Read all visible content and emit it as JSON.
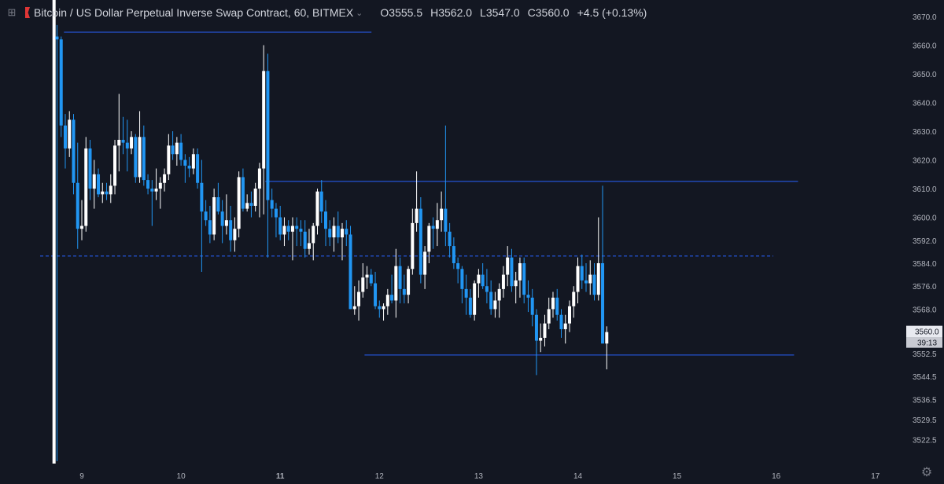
{
  "header": {
    "symbol": "Bitcoin / US Dollar Perpetual Inverse Swap Contract, 60, BITMEX",
    "open": "O3555.5",
    "high": "H3562.0",
    "low": "L3547.0",
    "close": "C3560.0",
    "change": "+4.5 (+0.13%)"
  },
  "price_badge": {
    "price": "3560.0",
    "countdown": "39:13"
  },
  "colors": {
    "background": "#131722",
    "up": "#ffffff",
    "down": "#2196f3",
    "line": "#2962ff",
    "text": "#b2b5be"
  },
  "icons": {
    "expand": "expand-icon",
    "flag": "flag-icon",
    "settings": "gear-icon"
  },
  "chart_data": {
    "type": "candlestick",
    "xlabel": "",
    "ylabel": "",
    "ylim": [
      3518,
      3673
    ],
    "xlim": [
      8.62,
      17.3
    ],
    "grid": false,
    "y_ticks": [
      3670.0,
      3660.0,
      3650.0,
      3640.0,
      3630.0,
      3620.0,
      3610.0,
      3600.0,
      3592.0,
      3584.0,
      3576.0,
      3568.0,
      3560.0,
      3552.5,
      3544.5,
      3536.5,
      3529.5,
      3522.5
    ],
    "y_tick_labels": [
      "3670.0",
      "3660.0",
      "3650.0",
      "3640.0",
      "3630.0",
      "3620.0",
      "3610.0",
      "3600.0",
      "3592.0",
      "3584.0",
      "3576.0",
      "3568.0",
      "3560.0",
      "3552.5",
      "3544.5",
      "3536.5",
      "3529.5",
      "3522.5"
    ],
    "x_ticks": [
      {
        "day": 9,
        "label": "9",
        "bold": false
      },
      {
        "day": 10,
        "label": "10",
        "bold": false
      },
      {
        "day": 11,
        "label": "11",
        "bold": true
      },
      {
        "day": 12,
        "label": "12",
        "bold": false
      },
      {
        "day": 13,
        "label": "13",
        "bold": false
      },
      {
        "day": 14,
        "label": "14",
        "bold": false
      },
      {
        "day": 15,
        "label": "15",
        "bold": false
      },
      {
        "day": 16,
        "label": "16",
        "bold": false
      },
      {
        "day": 17,
        "label": "17",
        "bold": false
      }
    ],
    "first_candle_day": 8.75,
    "candle_step_days": 0.0416667,
    "candles": [
      [
        3663,
        3667,
        3515,
        3662
      ],
      [
        3662,
        3663,
        3628,
        3632
      ],
      [
        3632,
        3636,
        3617,
        3624
      ],
      [
        3624,
        3637,
        3621,
        3634
      ],
      [
        3634,
        3636,
        3608,
        3612
      ],
      [
        3612,
        3626,
        3589,
        3596
      ],
      [
        3596,
        3606,
        3592,
        3597
      ],
      [
        3597,
        3628,
        3595,
        3624
      ],
      [
        3624,
        3627,
        3606,
        3610
      ],
      [
        3610,
        3620,
        3603,
        3615
      ],
      [
        3615,
        3617,
        3607,
        3608
      ],
      [
        3608,
        3612,
        3605,
        3609
      ],
      [
        3609,
        3612,
        3606,
        3608
      ],
      [
        3608,
        3615,
        3605,
        3611
      ],
      [
        3611,
        3627,
        3608,
        3625
      ],
      [
        3625,
        3643,
        3616,
        3627
      ],
      [
        3627,
        3635,
        3622,
        3626
      ],
      [
        3626,
        3634,
        3616,
        3624
      ],
      [
        3624,
        3630,
        3622,
        3628
      ],
      [
        3628,
        3629,
        3612,
        3614
      ],
      [
        3614,
        3637,
        3612,
        3628
      ],
      [
        3628,
        3632,
        3611,
        3613
      ],
      [
        3613,
        3615,
        3608,
        3610
      ],
      [
        3610,
        3613,
        3597,
        3609
      ],
      [
        3609,
        3617,
        3606,
        3610
      ],
      [
        3610,
        3614,
        3603,
        3612
      ],
      [
        3612,
        3617,
        3609,
        3615
      ],
      [
        3615,
        3629,
        3613,
        3625
      ],
      [
        3625,
        3630,
        3620,
        3622
      ],
      [
        3622,
        3628,
        3618,
        3626
      ],
      [
        3626,
        3629,
        3618,
        3620
      ],
      [
        3620,
        3622,
        3612,
        3618
      ],
      [
        3618,
        3621,
        3614,
        3617
      ],
      [
        3617,
        3624,
        3615,
        3622
      ],
      [
        3622,
        3624,
        3610,
        3612
      ],
      [
        3612,
        3620,
        3581,
        3602
      ],
      [
        3602,
        3606,
        3597,
        3599
      ],
      [
        3599,
        3604,
        3591,
        3594
      ],
      [
        3594,
        3610,
        3592,
        3607
      ],
      [
        3607,
        3612,
        3601,
        3602
      ],
      [
        3602,
        3606,
        3591,
        3597
      ],
      [
        3597,
        3608,
        3594,
        3599
      ],
      [
        3599,
        3604,
        3588,
        3592
      ],
      [
        3592,
        3600,
        3588,
        3596
      ],
      [
        3596,
        3616,
        3593,
        3614
      ],
      [
        3614,
        3617,
        3602,
        3603
      ],
      [
        3603,
        3608,
        3602,
        3605
      ],
      [
        3605,
        3609,
        3600,
        3604
      ],
      [
        3604,
        3612,
        3602,
        3610
      ],
      [
        3610,
        3619,
        3600,
        3617
      ],
      [
        3617,
        3660,
        3601,
        3651
      ],
      [
        3651,
        3657,
        3586,
        3606
      ],
      [
        3606,
        3610,
        3600,
        3603
      ],
      [
        3603,
        3605,
        3593,
        3600
      ],
      [
        3600,
        3604,
        3592,
        3594
      ],
      [
        3594,
        3600,
        3590,
        3597
      ],
      [
        3597,
        3599,
        3592,
        3595
      ],
      [
        3595,
        3600,
        3585,
        3597
      ],
      [
        3597,
        3600,
        3590,
        3596
      ],
      [
        3596,
        3599,
        3590,
        3595
      ],
      [
        3595,
        3599,
        3586,
        3589
      ],
      [
        3589,
        3596,
        3587,
        3591
      ],
      [
        3591,
        3598,
        3585,
        3597
      ],
      [
        3597,
        3610,
        3594,
        3609
      ],
      [
        3609,
        3613,
        3598,
        3602
      ],
      [
        3602,
        3606,
        3590,
        3596
      ],
      [
        3596,
        3599,
        3590,
        3593
      ],
      [
        3593,
        3600,
        3588,
        3597
      ],
      [
        3597,
        3602,
        3591,
        3593
      ],
      [
        3593,
        3598,
        3585,
        3596
      ],
      [
        3596,
        3599,
        3590,
        3594
      ],
      [
        3594,
        3597,
        3568,
        3568
      ],
      [
        3568,
        3576,
        3566,
        3569
      ],
      [
        3569,
        3578,
        3564,
        3574
      ],
      [
        3574,
        3584,
        3572,
        3579
      ],
      [
        3579,
        3583,
        3575,
        3580
      ],
      [
        3580,
        3582,
        3576,
        3577
      ],
      [
        3577,
        3581,
        3568,
        3569
      ],
      [
        3569,
        3571,
        3565,
        3568
      ],
      [
        3568,
        3570,
        3564,
        3569
      ],
      [
        3569,
        3575,
        3566,
        3573
      ],
      [
        3573,
        3580,
        3570,
        3571
      ],
      [
        3571,
        3589,
        3565,
        3583
      ],
      [
        3583,
        3586,
        3570,
        3575
      ],
      [
        3575,
        3580,
        3570,
        3573
      ],
      [
        3573,
        3583,
        3570,
        3582
      ],
      [
        3582,
        3603,
        3580,
        3598
      ],
      [
        3598,
        3616,
        3595,
        3603
      ],
      [
        3603,
        3607,
        3577,
        3580
      ],
      [
        3580,
        3590,
        3575,
        3588
      ],
      [
        3588,
        3598,
        3584,
        3597
      ],
      [
        3597,
        3600,
        3589,
        3596
      ],
      [
        3596,
        3605,
        3590,
        3599
      ],
      [
        3599,
        3609,
        3595,
        3603
      ],
      [
        3603,
        3632,
        3590,
        3595
      ],
      [
        3595,
        3598,
        3586,
        3590
      ],
      [
        3590,
        3593,
        3582,
        3584
      ],
      [
        3584,
        3586,
        3577,
        3582
      ],
      [
        3582,
        3583,
        3570,
        3575
      ],
      [
        3575,
        3580,
        3566,
        3572
      ],
      [
        3572,
        3575,
        3565,
        3566
      ],
      [
        3566,
        3578,
        3564,
        3577
      ],
      [
        3577,
        3582,
        3572,
        3580
      ],
      [
        3580,
        3584,
        3575,
        3576
      ],
      [
        3576,
        3582,
        3570,
        3574
      ],
      [
        3574,
        3578,
        3566,
        3568
      ],
      [
        3568,
        3574,
        3565,
        3571
      ],
      [
        3571,
        3577,
        3565,
        3575
      ],
      [
        3575,
        3583,
        3572,
        3580
      ],
      [
        3580,
        3590,
        3576,
        3586
      ],
      [
        3586,
        3589,
        3574,
        3576
      ],
      [
        3576,
        3581,
        3570,
        3578
      ],
      [
        3578,
        3586,
        3572,
        3584
      ],
      [
        3584,
        3586,
        3570,
        3573
      ],
      [
        3573,
        3578,
        3567,
        3572
      ],
      [
        3572,
        3575,
        3562,
        3566
      ],
      [
        3566,
        3568,
        3545,
        3557
      ],
      [
        3557,
        3563,
        3553,
        3558
      ],
      [
        3558,
        3566,
        3555,
        3563
      ],
      [
        3563,
        3572,
        3561,
        3568
      ],
      [
        3568,
        3574,
        3565,
        3572
      ],
      [
        3572,
        3575,
        3564,
        3566
      ],
      [
        3566,
        3568,
        3558,
        3561
      ],
      [
        3561,
        3566,
        3556,
        3563
      ],
      [
        3563,
        3571,
        3560,
        3569
      ],
      [
        3569,
        3576,
        3565,
        3574
      ],
      [
        3574,
        3586,
        3570,
        3583
      ],
      [
        3583,
        3587,
        3575,
        3578
      ],
      [
        3578,
        3584,
        3574,
        3577
      ],
      [
        3577,
        3585,
        3573,
        3580
      ],
      [
        3580,
        3584,
        3571,
        3573
      ],
      [
        3573,
        3600,
        3571,
        3584
      ],
      [
        3584,
        3611,
        3556,
        3556
      ],
      [
        3556,
        3562,
        3547,
        3560
      ]
    ],
    "lines": [
      {
        "kind": "horizontal",
        "price": 3664.5,
        "from_day": 8.82,
        "to_day": 11.92,
        "style": "solid"
      },
      {
        "kind": "horizontal",
        "price": 3612.5,
        "from_day": 10.85,
        "to_day": 16.22,
        "style": "solid"
      },
      {
        "kind": "horizontal",
        "price": 3586.5,
        "from_day": 8.58,
        "to_day": 15.97,
        "style": "dashed"
      },
      {
        "kind": "horizontal",
        "price": 3552.0,
        "from_day": 11.85,
        "to_day": 16.18,
        "style": "solid"
      },
      {
        "kind": "vertical",
        "day": 8.72,
        "style": "solid"
      }
    ]
  }
}
